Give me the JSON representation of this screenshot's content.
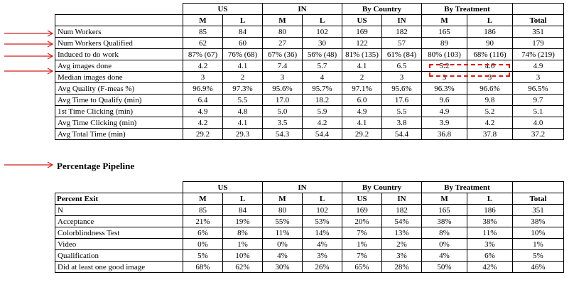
{
  "colors": {
    "arrow": "#d11d1d",
    "highlight": "#d11d1d"
  },
  "table1": {
    "groups": [
      "US",
      "IN",
      "By Country",
      "By Treatment",
      "Total"
    ],
    "subheaders": [
      "M",
      "L",
      "M",
      "L",
      "US",
      "IN",
      "M",
      "L",
      "Total"
    ],
    "rows": [
      {
        "label": "Num Workers",
        "cells": [
          "85",
          "84",
          "80",
          "102",
          "169",
          "182",
          "165",
          "186",
          "351"
        ]
      },
      {
        "label": "Num Workers Qualified",
        "cells": [
          "62",
          "60",
          "27",
          "30",
          "122",
          "57",
          "89",
          "90",
          "179"
        ]
      },
      {
        "label": "Induced to do work",
        "cells": [
          "87% (67)",
          "76% (68)",
          "67% (36)",
          "56% (48)",
          "81% (135)",
          "61% (84)",
          "80% (103)",
          "68% (116)",
          "74% (219)"
        ]
      },
      {
        "label": "Avg images done",
        "cells": [
          "4.2",
          "4.1",
          "7.4",
          "5.7",
          "4.1",
          "6.5",
          "5.2",
          "4.6",
          "4.9"
        ]
      },
      {
        "label": "Median images done",
        "cells": [
          "3",
          "2",
          "3",
          "4",
          "2",
          "3",
          "3",
          "3",
          "3"
        ]
      },
      {
        "label": "Avg Quality (F-meas %)",
        "cells": [
          "96.9%",
          "97.3%",
          "95.6%",
          "95.7%",
          "97.1%",
          "95.6%",
          "96.3%",
          "96.6%",
          "96.5%"
        ]
      },
      {
        "label": "Avg Time to Qualify (min)",
        "cells": [
          "6.4",
          "5.5",
          "17.0",
          "18.2",
          "6.0",
          "17.6",
          "9.6",
          "9.8",
          "9.7"
        ]
      },
      {
        "label": "1st Time Clicking (min)",
        "cells": [
          "4.9",
          "4.8",
          "5.0",
          "5.9",
          "4.9",
          "5.5",
          "4.9",
          "5.2",
          "5.1"
        ]
      },
      {
        "label": "Avg Time Clicking (min)",
        "cells": [
          "4.2",
          "4.1",
          "3.5",
          "4.2",
          "4.1",
          "3.8",
          "3.9",
          "4.2",
          "4.0"
        ]
      },
      {
        "label": "Avg Total Time (min)",
        "cells": [
          "29.2",
          "29.3",
          "54.3",
          "54.4",
          "29.2",
          "54.4",
          "36.8",
          "37.8",
          "37.2"
        ]
      }
    ]
  },
  "section_title": "Percentage Pipeline",
  "table2": {
    "corner": "Percent Exit",
    "groups": [
      "US",
      "IN",
      "By Country",
      "By Treatment",
      "Total"
    ],
    "subheaders": [
      "M",
      "L",
      "M",
      "L",
      "US",
      "IN",
      "M",
      "L",
      "Total"
    ],
    "rows": [
      {
        "label": "N",
        "cells": [
          "85",
          "84",
          "80",
          "102",
          "169",
          "182",
          "165",
          "186",
          "351"
        ]
      },
      {
        "label": "Acceptance",
        "cells": [
          "21%",
          "19%",
          "55%",
          "53%",
          "20%",
          "54%",
          "38%",
          "38%",
          "38%"
        ]
      },
      {
        "label": "Colorblindness Test",
        "cells": [
          "6%",
          "8%",
          "11%",
          "14%",
          "7%",
          "13%",
          "8%",
          "11%",
          "10%"
        ]
      },
      {
        "label": "Video",
        "cells": [
          "0%",
          "1%",
          "0%",
          "4%",
          "1%",
          "2%",
          "0%",
          "3%",
          "1%"
        ]
      },
      {
        "label": "Qualification",
        "cells": [
          "5%",
          "10%",
          "4%",
          "3%",
          "7%",
          "3%",
          "4%",
          "6%",
          "5%"
        ]
      },
      {
        "label": "Did at least one good image",
        "cells": [
          "68%",
          "62%",
          "30%",
          "26%",
          "65%",
          "28%",
          "50%",
          "42%",
          "46%"
        ]
      }
    ]
  }
}
